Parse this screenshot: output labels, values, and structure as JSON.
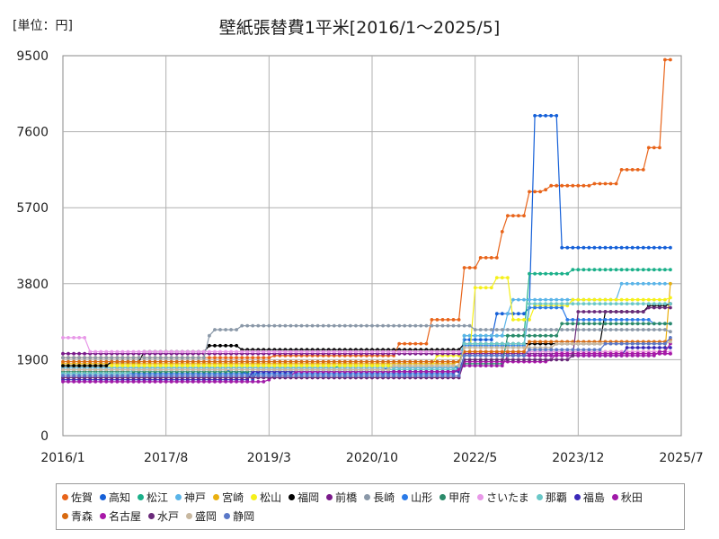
{
  "chart_data": {
    "type": "line",
    "title": "壁紙張替費1平米[2016/1～2025/5]",
    "unit_label": "[単位：円]",
    "y_ticks": [
      "9500",
      "7600",
      "5700",
      "3800",
      "1900",
      "0"
    ],
    "x_ticks": [
      "2016/1",
      "2017/8",
      "2019/3",
      "2020/10",
      "2022/5",
      "2023/12",
      "2025/7"
    ],
    "ylim": [
      0,
      9500
    ],
    "series": [
      {
        "name": "佐賀",
        "color": "#e8641a",
        "points": [
          [
            0,
            1950
          ],
          [
            45,
            1950
          ],
          [
            46,
            2000
          ],
          [
            71,
            2000
          ],
          [
            72,
            2300
          ],
          [
            78,
            2300
          ],
          [
            79,
            2900
          ],
          [
            85,
            2900
          ],
          [
            86,
            4200
          ],
          [
            89,
            4200
          ],
          [
            90,
            4450
          ],
          [
            94,
            4450
          ],
          [
            95,
            5100
          ],
          [
            96,
            5500
          ],
          [
            100,
            5500
          ],
          [
            101,
            6100
          ],
          [
            104,
            6150
          ],
          [
            105,
            6250
          ],
          [
            112,
            6250
          ],
          [
            115,
            6300
          ],
          [
            119,
            6300
          ],
          [
            120,
            6650
          ],
          [
            125,
            6650
          ],
          [
            126,
            7200
          ],
          [
            129,
            7200
          ],
          [
            130,
            9400
          ],
          [
            131,
            9400
          ]
        ]
      },
      {
        "name": "高知",
        "color": "#1560d8",
        "points": [
          [
            0,
            1650
          ],
          [
            35,
            1650
          ],
          [
            36,
            1600
          ],
          [
            40,
            1550
          ],
          [
            41,
            1400
          ],
          [
            42,
            1650
          ],
          [
            70,
            1700
          ],
          [
            85,
            1750
          ],
          [
            86,
            2400
          ],
          [
            93,
            2400
          ],
          [
            94,
            3050
          ],
          [
            99,
            3050
          ],
          [
            100,
            3200
          ],
          [
            101,
            3200
          ],
          [
            102,
            8000
          ],
          [
            106,
            8000
          ],
          [
            107,
            4950
          ],
          [
            108,
            4700
          ],
          [
            131,
            4700
          ]
        ]
      },
      {
        "name": "松江",
        "color": "#1bb08a",
        "points": [
          [
            0,
            1700
          ],
          [
            60,
            1750
          ],
          [
            85,
            1700
          ],
          [
            86,
            2500
          ],
          [
            100,
            2500
          ],
          [
            101,
            4050
          ],
          [
            108,
            4050
          ],
          [
            109,
            4050
          ],
          [
            110,
            4150
          ],
          [
            131,
            4150
          ]
        ]
      },
      {
        "name": "神戸",
        "color": "#5ab4e8",
        "points": [
          [
            0,
            1700
          ],
          [
            85,
            1700
          ],
          [
            86,
            2500
          ],
          [
            95,
            2500
          ],
          [
            96,
            3050
          ],
          [
            97,
            3400
          ],
          [
            119,
            3400
          ],
          [
            120,
            3800
          ],
          [
            131,
            3800
          ]
        ]
      },
      {
        "name": "宮崎",
        "color": "#eab010",
        "points": [
          [
            0,
            1800
          ],
          [
            85,
            1850
          ],
          [
            86,
            2100
          ],
          [
            130,
            2100
          ],
          [
            131,
            3800
          ]
        ]
      },
      {
        "name": "松山",
        "color": "#f5f01a",
        "points": [
          [
            0,
            1750
          ],
          [
            80,
            1750
          ],
          [
            81,
            2000
          ],
          [
            88,
            2000
          ],
          [
            89,
            3700
          ],
          [
            92,
            3700
          ],
          [
            93,
            3950
          ],
          [
            96,
            3950
          ],
          [
            97,
            2900
          ],
          [
            101,
            2900
          ],
          [
            102,
            3250
          ],
          [
            109,
            3250
          ],
          [
            110,
            3400
          ],
          [
            131,
            3450
          ]
        ]
      },
      {
        "name": "福岡",
        "color": "#000000",
        "points": [
          [
            0,
            1750
          ],
          [
            10,
            1750
          ],
          [
            11,
            1850
          ],
          [
            17,
            1850
          ],
          [
            18,
            2100
          ],
          [
            31,
            2100
          ],
          [
            32,
            2250
          ],
          [
            37,
            2250
          ],
          [
            38,
            2150
          ],
          [
            85,
            2150
          ],
          [
            86,
            2300
          ],
          [
            116,
            2300
          ],
          [
            117,
            3100
          ],
          [
            125,
            3100
          ],
          [
            126,
            3250
          ],
          [
            131,
            3300
          ]
        ]
      },
      {
        "name": "前橋",
        "color": "#7a1a8a",
        "points": [
          [
            0,
            2050
          ],
          [
            131,
            2050
          ]
        ]
      },
      {
        "name": "長崎",
        "color": "#8a98a8",
        "points": [
          [
            0,
            1950
          ],
          [
            31,
            1950
          ],
          [
            32,
            2500
          ],
          [
            33,
            2650
          ],
          [
            37,
            2650
          ],
          [
            38,
            2750
          ],
          [
            88,
            2750
          ],
          [
            89,
            2650
          ],
          [
            131,
            2600
          ]
        ]
      },
      {
        "name": "山形",
        "color": "#2a7ae8",
        "points": [
          [
            0,
            1550
          ],
          [
            84,
            1550
          ],
          [
            85,
            1750
          ],
          [
            86,
            2250
          ],
          [
            100,
            2250
          ],
          [
            101,
            3200
          ],
          [
            108,
            3200
          ],
          [
            109,
            2900
          ],
          [
            126,
            2900
          ],
          [
            127,
            2800
          ],
          [
            131,
            2800
          ]
        ]
      },
      {
        "name": "甲府",
        "color": "#2a8a6a",
        "points": [
          [
            0,
            1600
          ],
          [
            85,
            1650
          ],
          [
            86,
            1800
          ],
          [
            95,
            1800
          ],
          [
            96,
            2500
          ],
          [
            106,
            2500
          ],
          [
            107,
            2800
          ],
          [
            131,
            2800
          ]
        ]
      },
      {
        "name": "さいたま",
        "color": "#e898e8",
        "points": [
          [
            0,
            2450
          ],
          [
            5,
            2450
          ],
          [
            6,
            2100
          ],
          [
            131,
            2100
          ]
        ]
      },
      {
        "name": "那覇",
        "color": "#6ac8c8",
        "points": [
          [
            0,
            1550
          ],
          [
            14,
            1550
          ],
          [
            15,
            1650
          ],
          [
            85,
            1650
          ],
          [
            86,
            2300
          ],
          [
            100,
            2300
          ],
          [
            101,
            3300
          ],
          [
            131,
            3300
          ]
        ]
      },
      {
        "name": "福島",
        "color": "#3a28b8",
        "points": [
          [
            0,
            1400
          ],
          [
            40,
            1400
          ],
          [
            41,
            1600
          ],
          [
            85,
            1600
          ],
          [
            86,
            2000
          ],
          [
            120,
            2000
          ],
          [
            121,
            2200
          ],
          [
            131,
            2200
          ]
        ]
      },
      {
        "name": "秋田",
        "color": "#a01aa8",
        "points": [
          [
            0,
            1350
          ],
          [
            38,
            1350
          ],
          [
            44,
            1400
          ],
          [
            46,
            1500
          ],
          [
            50,
            1600
          ],
          [
            80,
            1600
          ],
          [
            85,
            1650
          ],
          [
            86,
            1750
          ],
          [
            95,
            1750
          ],
          [
            96,
            2000
          ],
          [
            122,
            2000
          ],
          [
            128,
            2100
          ],
          [
            131,
            2300
          ]
        ]
      },
      {
        "name": "青森",
        "color": "#d86a10",
        "points": [
          [
            0,
            1850
          ],
          [
            85,
            1850
          ],
          [
            86,
            2100
          ],
          [
            100,
            2100
          ],
          [
            101,
            2350
          ],
          [
            131,
            2400
          ]
        ]
      },
      {
        "name": "名古屋",
        "color": "#a818a8",
        "points": [
          [
            0,
            1450
          ],
          [
            85,
            1450
          ],
          [
            86,
            1850
          ],
          [
            105,
            1900
          ],
          [
            106,
            2050
          ],
          [
            131,
            2050
          ]
        ]
      },
      {
        "name": "水戸",
        "color": "#6a2a7a",
        "points": [
          [
            0,
            1450
          ],
          [
            85,
            1450
          ],
          [
            86,
            1900
          ],
          [
            110,
            2000
          ],
          [
            111,
            3100
          ],
          [
            125,
            3100
          ],
          [
            126,
            3200
          ],
          [
            131,
            3200
          ]
        ]
      },
      {
        "name": "盛岡",
        "color": "#c8b8a0",
        "points": [
          [
            0,
            1650
          ],
          [
            70,
            1650
          ],
          [
            71,
            1750
          ],
          [
            85,
            1750
          ],
          [
            86,
            2200
          ],
          [
            105,
            2200
          ],
          [
            106,
            2300
          ],
          [
            131,
            2350
          ]
        ]
      },
      {
        "name": "静岡",
        "color": "#5a78c8",
        "points": [
          [
            0,
            1500
          ],
          [
            85,
            1500
          ],
          [
            86,
            2000
          ],
          [
            100,
            2000
          ],
          [
            101,
            2150
          ],
          [
            116,
            2150
          ],
          [
            117,
            2300
          ],
          [
            131,
            2450
          ]
        ]
      }
    ]
  }
}
